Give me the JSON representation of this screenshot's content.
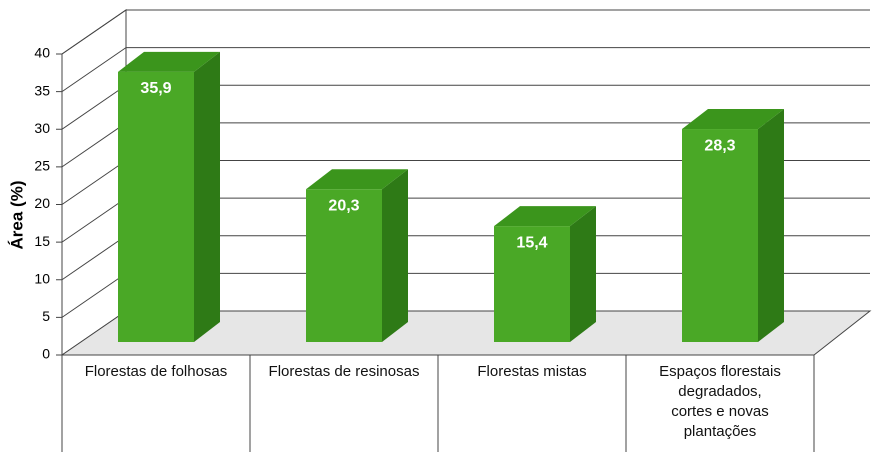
{
  "chart_data": {
    "type": "bar3d",
    "y_label": "Área (%)",
    "categories": [
      "Florestas de folhosas",
      "Florestas de resinosas",
      "Florestas mistas",
      "Espaços florestais\ndegradados,\ncortes e novas\nplantações"
    ],
    "values": [
      35.9,
      20.3,
      15.4,
      28.3
    ],
    "value_labels": [
      "35,9",
      "20,3",
      "15,4",
      "28,3"
    ],
    "color": "#4aa826",
    "ylim": [
      0,
      40
    ],
    "yticks": [
      0,
      5,
      10,
      15,
      20,
      25,
      30,
      35,
      40
    ],
    "grid": true
  }
}
